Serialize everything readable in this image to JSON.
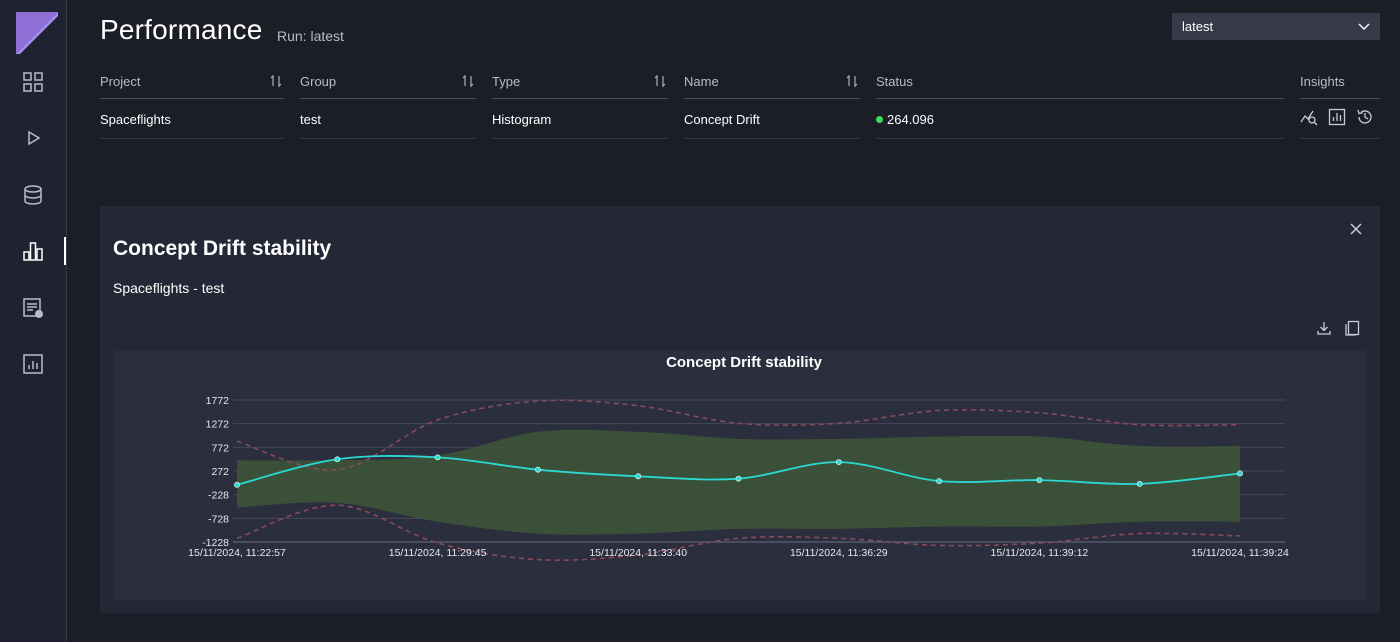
{
  "header": {
    "title": "Performance",
    "run_label": "Run: latest",
    "run_select_value": "latest"
  },
  "table": {
    "columns": [
      "Project",
      "Group",
      "Type",
      "Name",
      "Status",
      "Insights"
    ],
    "row": {
      "project": "Spaceflights",
      "group": "test",
      "type": "Histogram",
      "name": "Concept Drift",
      "status": "264.096",
      "status_color": "#3ddc5c"
    }
  },
  "panel": {
    "title": "Concept Drift stability",
    "subtitle": "Spaceflights - test"
  },
  "colors": {
    "accent": "#9b7fe0",
    "line": "#2bd9d3",
    "band": "#3e5638",
    "bound": "#8a4a5c"
  },
  "chart_data": {
    "type": "line",
    "title": "Concept Drift stability",
    "ylim": [
      -1228,
      1772
    ],
    "yticks": [
      "1772",
      "1272",
      "772",
      "272",
      "-228",
      "-728",
      "-1228"
    ],
    "ytick_values": [
      1772,
      1272,
      772,
      272,
      -228,
      -728,
      -1228
    ],
    "xtick_labels": [
      "15/11/2024, 11:22:57",
      "15/11/2024, 11:29:45",
      "15/11/2024, 11:33:40",
      "15/11/2024, 11:36:29",
      "15/11/2024, 11:39:12",
      "15/11/2024, 11:39:24"
    ],
    "x_count": 11,
    "xtick_indices": [
      0,
      2,
      4,
      6,
      8,
      10
    ],
    "series": [
      {
        "values": [
          -20,
          520,
          560,
          300,
          160,
          110,
          460,
          60,
          80,
          0,
          220
        ]
      }
    ],
    "band_upper": [
      500,
      500,
      600,
      1100,
      1100,
      950,
      950,
      1000,
      1000,
      800,
      800
    ],
    "band_lower": [
      -500,
      -400,
      -800,
      -1050,
      -1050,
      -950,
      -950,
      -900,
      -900,
      -800,
      -800
    ],
    "bound_upper": [
      900,
      300,
      1350,
      1750,
      1650,
      1280,
      1280,
      1550,
      1500,
      1250,
      1250
    ],
    "bound_lower": [
      -1150,
      -450,
      -1250,
      -1600,
      -1500,
      -1150,
      -1150,
      -1300,
      -1250,
      -1050,
      -1100
    ],
    "grid": true
  }
}
